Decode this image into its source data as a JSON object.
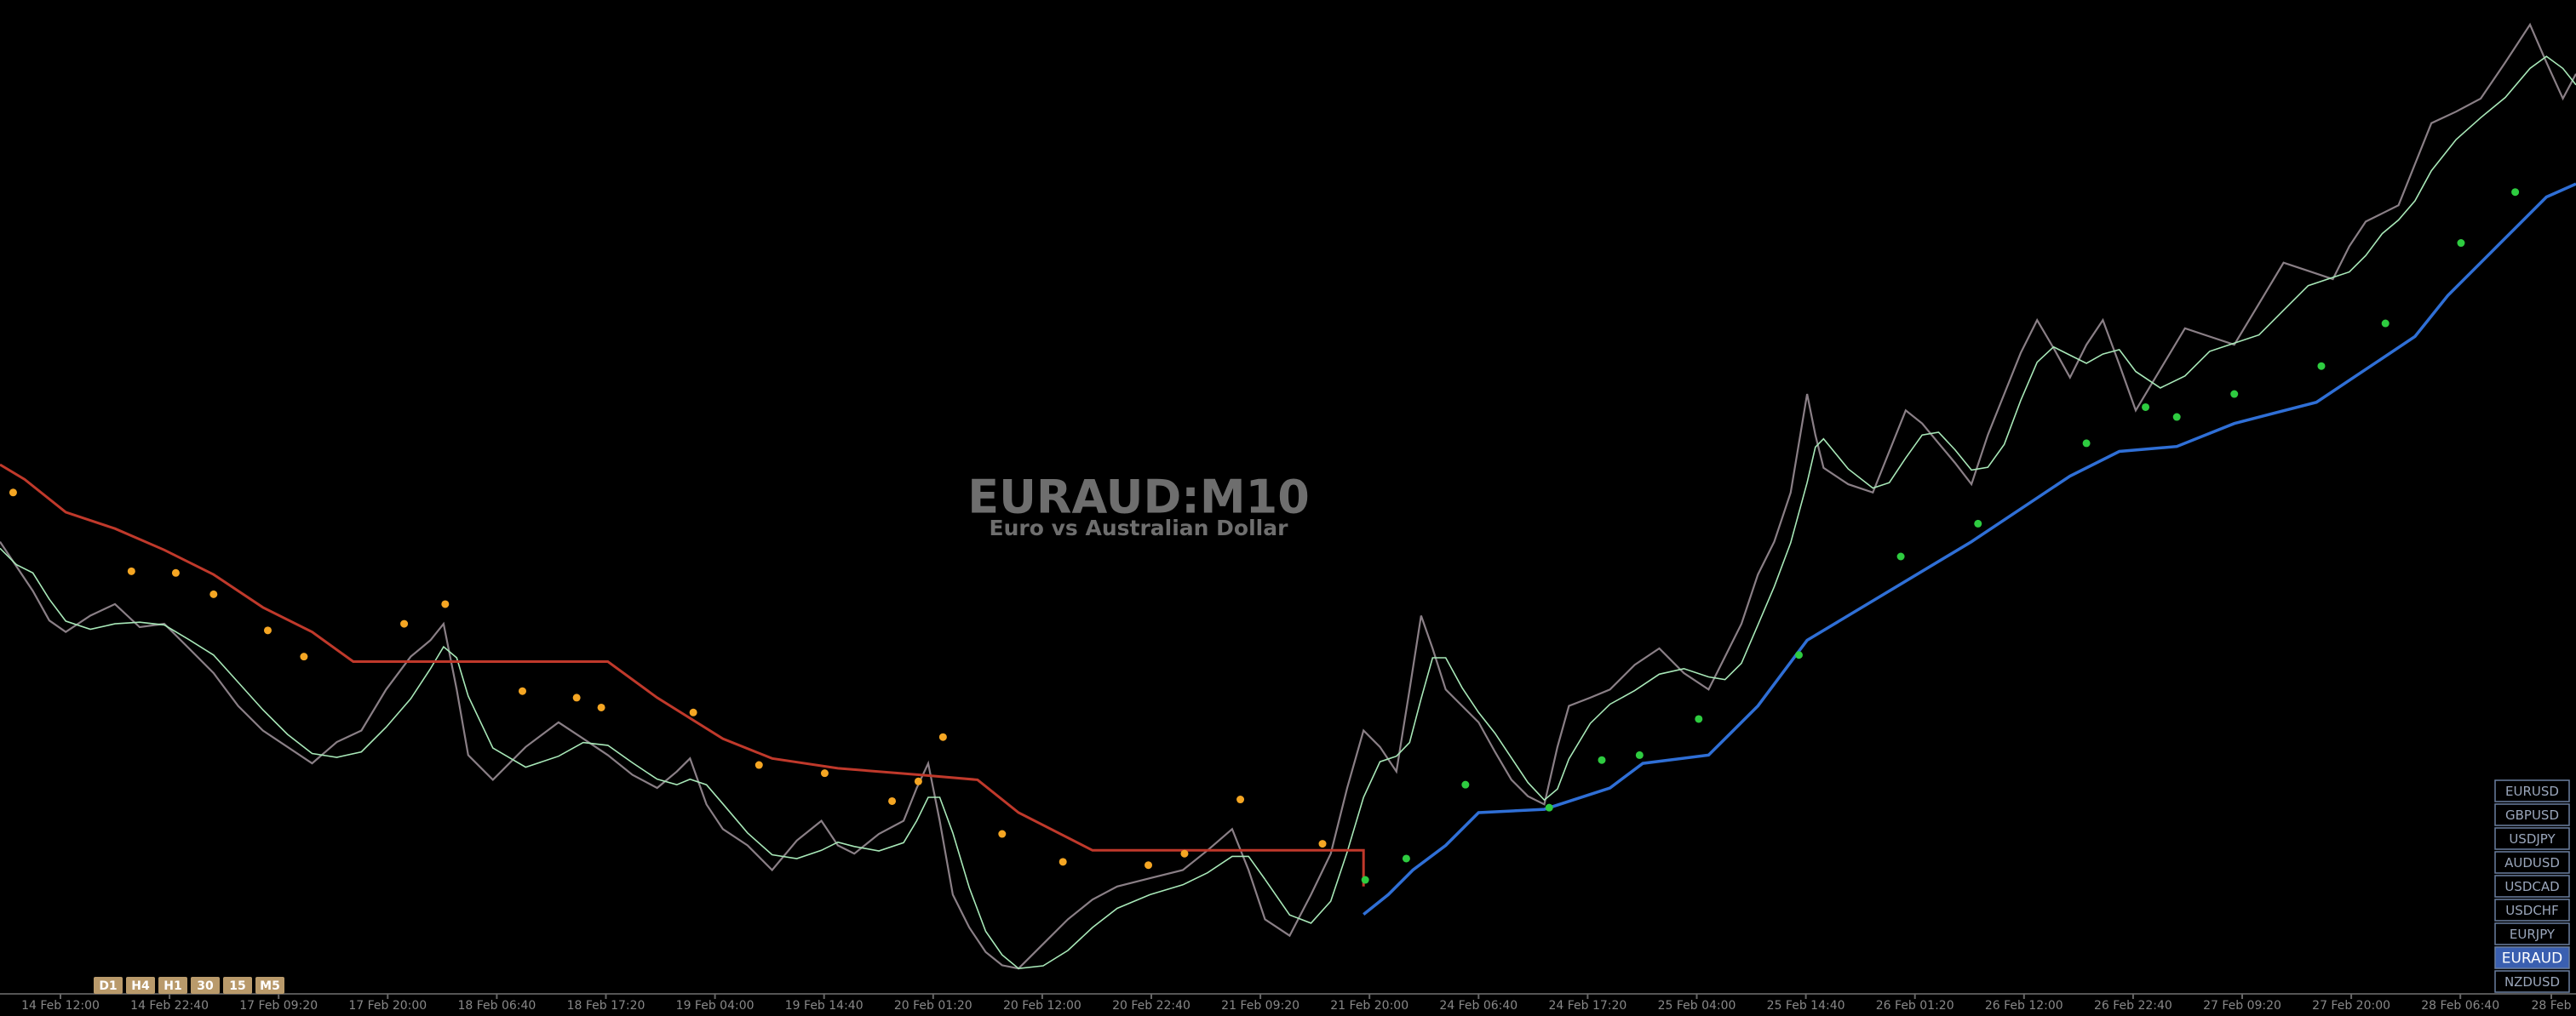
{
  "chart": {
    "title": "EURAUD:M10",
    "subtitle": "Euro vs Australian Dollar"
  },
  "x_axis": {
    "labels": [
      "14 Feb 12:00",
      "14 Feb 22:40",
      "17 Feb 09:20",
      "17 Feb 20:00",
      "18 Feb 06:40",
      "18 Feb 17:20",
      "19 Feb 04:00",
      "19 Feb 14:40",
      "20 Feb 01:20",
      "20 Feb 12:00",
      "20 Feb 22:40",
      "21 Feb 09:20",
      "21 Feb 20:00",
      "24 Feb 06:40",
      "24 Feb 17:20",
      "25 Feb 04:00",
      "25 Feb 14:40",
      "26 Feb 01:20",
      "26 Feb 12:00",
      "26 Feb 22:40",
      "27 Feb 09:20",
      "27 Feb 20:00",
      "28 Feb 06:40",
      "28 Feb"
    ]
  },
  "timeframes": [
    "D1",
    "H4",
    "H1",
    "30",
    "15",
    "M5"
  ],
  "symbols": {
    "items": [
      "EURUSD",
      "GBPUSD",
      "USDJPY",
      "AUDUSD",
      "USDCAD",
      "USDCHF",
      "EURJPY",
      "EURAUD",
      "NZDUSD"
    ],
    "active": 7
  }
}
